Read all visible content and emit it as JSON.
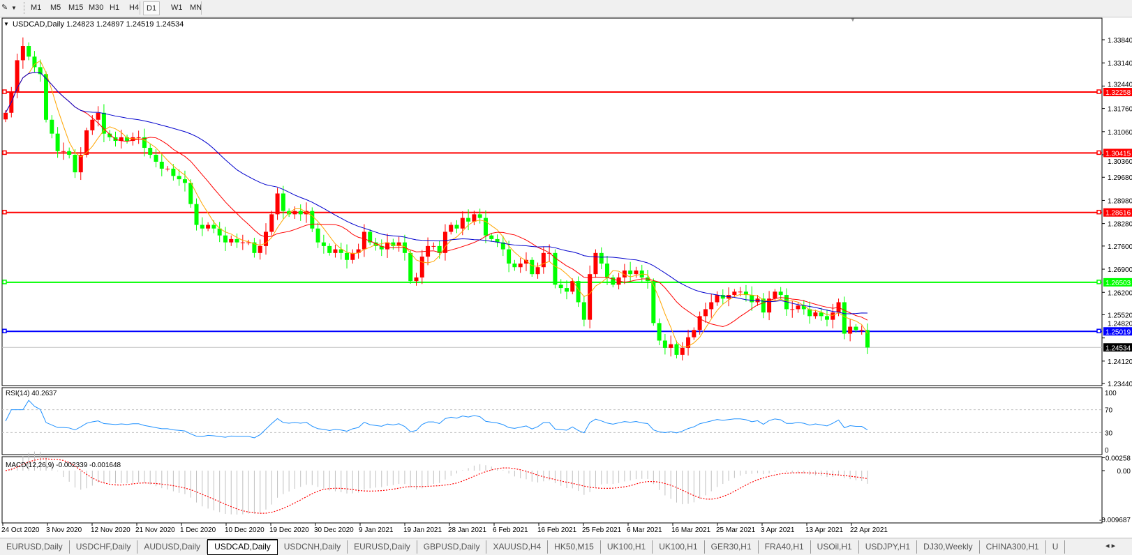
{
  "toolbar": {
    "drawing_tool_icon": "line-tool-icon",
    "timeframes": [
      {
        "label": "M1",
        "active": false
      },
      {
        "label": "M5",
        "active": false
      },
      {
        "label": "M15",
        "active": false
      },
      {
        "label": "M30",
        "active": false
      },
      {
        "label": "H1",
        "active": false
      },
      {
        "label": "H4",
        "active": false
      },
      {
        "label": "D1",
        "active": true
      },
      {
        "label": "W1",
        "active": false
      },
      {
        "label": "MN",
        "active": false
      }
    ]
  },
  "chart": {
    "header": "USDCAD,Daily  1.24823 1.24897 1.24519 1.24534",
    "rsi_label": "RSI(14) 40.2637",
    "macd_label": "MACD(12,26,9) -0.002339 -0.001648",
    "colors": {
      "bull": "#ff0000",
      "bear": "#00ff00",
      "ma_fast": "#ffa500",
      "ma_mid": "#ff0000",
      "ma_slow": "#0000cd",
      "rsi": "#1e90ff",
      "macd_hist": "#c0c0c0",
      "macd_signal": "#ff0000"
    }
  },
  "chart_data": {
    "type": "candlestick",
    "symbol": "USDCAD",
    "timeframe": "Daily",
    "ylim": [
      1.2344,
      1.3384
    ],
    "y_ticks": [
      "1.33840",
      "1.33140",
      "1.32440",
      "1.31760",
      "1.31060",
      "1.30360",
      "1.29680",
      "1.28980",
      "1.28280",
      "1.27600",
      "1.26900",
      "1.26200",
      "1.25520",
      "1.24820",
      "1.24120",
      "1.23440"
    ],
    "x_ticks": [
      "24 Oct 2020",
      "3 Nov 2020",
      "12 Nov 2020",
      "21 Nov 2020",
      "1 Dec 2020",
      "10 Dec 2020",
      "19 Dec 2020",
      "30 Dec 2020",
      "9 Jan 2021",
      "19 Jan 2021",
      "28 Jan 2021",
      "6 Feb 2021",
      "16 Feb 2021",
      "25 Feb 2021",
      "6 Mar 2021",
      "16 Mar 2021",
      "25 Mar 2021",
      "3 Apr 2021",
      "13 Apr 2021",
      "22 Apr 2021"
    ],
    "close": [
      1.3163,
      1.3227,
      1.3322,
      1.3365,
      1.3333,
      1.3301,
      1.328,
      1.3142,
      1.31,
      1.3047,
      1.3047,
      1.3036,
      1.2983,
      1.3036,
      1.311,
      1.3142,
      1.3163,
      1.31,
      1.3089,
      1.3078,
      1.3089,
      1.3078,
      1.3089,
      1.3089,
      1.3057,
      1.3036,
      1.3015,
      1.2994,
      1.2994,
      1.2972,
      1.2962,
      1.2951,
      1.2887,
      1.2824,
      1.2813,
      1.2824,
      1.2813,
      1.2792,
      1.2771,
      1.2781,
      1.2771,
      1.2771,
      1.2771,
      1.2739,
      1.276,
      1.2803,
      1.2856,
      1.2919,
      1.2866,
      1.2856,
      1.2866,
      1.2856,
      1.2866,
      1.2813,
      1.2771,
      1.276,
      1.2739,
      1.275,
      1.2739,
      1.2718,
      1.2739,
      1.275,
      1.2803,
      1.2771,
      1.276,
      1.275,
      1.2771,
      1.276,
      1.2771,
      1.2739,
      1.2654,
      1.2665,
      1.2728,
      1.276,
      1.276,
      1.2739,
      1.2803,
      1.2824,
      1.2813,
      1.2845,
      1.2834,
      1.2856,
      1.2845,
      1.2792,
      1.2781,
      1.2771,
      1.275,
      1.2707,
      1.2696,
      1.2707,
      1.2718,
      1.2675,
      1.2696,
      1.2739,
      1.2739,
      1.2643,
      1.2633,
      1.2622,
      1.2654,
      1.259,
      1.2537,
      1.2675,
      1.2739,
      1.2707,
      1.2665,
      1.2643,
      1.2665,
      1.2686,
      1.2675,
      1.2686,
      1.2665,
      1.2654,
      1.2527,
      1.2474,
      1.2452,
      1.2463,
      1.2431,
      1.2452,
      1.2484,
      1.2506,
      1.2548,
      1.2569,
      1.259,
      1.2612,
      1.2601,
      1.2612,
      1.2622,
      1.2622,
      1.2612,
      1.259,
      1.2601,
      1.2559,
      1.2601,
      1.2622,
      1.2612,
      1.2569,
      1.2569,
      1.258,
      1.2569,
      1.2548,
      1.2559,
      1.2548,
      1.2537,
      1.2559,
      1.259,
      1.2495,
      1.2516,
      1.2506,
      1.2506,
      1.2453
    ],
    "horizontal_lines": [
      {
        "price": 1.32258,
        "label": "1.32258",
        "color": "#ff0000"
      },
      {
        "price": 1.30415,
        "label": "1.30415",
        "color": "#ff0000"
      },
      {
        "price": 1.28616,
        "label": "1.28616",
        "color": "#ff0000"
      },
      {
        "price": 1.26503,
        "label": "1.26503",
        "color": "#00ff00"
      },
      {
        "price": 1.25019,
        "label": "1.25019",
        "color": "#0000ff"
      }
    ],
    "current_price": {
      "price": 1.24534,
      "label": "1.24534"
    },
    "rsi": {
      "period": 14,
      "levels": [
        70,
        30
      ],
      "ticks": [
        "100",
        "70",
        "30",
        "0"
      ],
      "ylim": [
        0,
        100
      ]
    },
    "macd": {
      "fast": 12,
      "slow": 26,
      "signal": 9,
      "ticks": [
        "0.00258",
        "0.00",
        "-0.009687"
      ],
      "ylim": [
        -0.009687,
        0.00258
      ]
    }
  },
  "tabs": [
    {
      "label": "EURUSD,Daily",
      "active": false
    },
    {
      "label": "USDCHF,Daily",
      "active": false
    },
    {
      "label": "AUDUSD,Daily",
      "active": false
    },
    {
      "label": "USDCAD,Daily",
      "active": true
    },
    {
      "label": "USDCNH,Daily",
      "active": false
    },
    {
      "label": "EURUSD,Daily",
      "active": false
    },
    {
      "label": "GBPUSD,Daily",
      "active": false
    },
    {
      "label": "XAUUSD,H4",
      "active": false
    },
    {
      "label": "HK50,M15",
      "active": false
    },
    {
      "label": "UK100,H1",
      "active": false
    },
    {
      "label": "UK100,H1",
      "active": false
    },
    {
      "label": "GER30,H1",
      "active": false
    },
    {
      "label": "FRA40,H1",
      "active": false
    },
    {
      "label": "USOil,H1",
      "active": false
    },
    {
      "label": "USDJPY,H1",
      "active": false
    },
    {
      "label": "DJ30,Weekly",
      "active": false
    },
    {
      "label": "CHINA300,H1",
      "active": false
    },
    {
      "label": "U",
      "active": false
    }
  ],
  "tab_scroll": {
    "left": "◂",
    "right": "▸"
  }
}
